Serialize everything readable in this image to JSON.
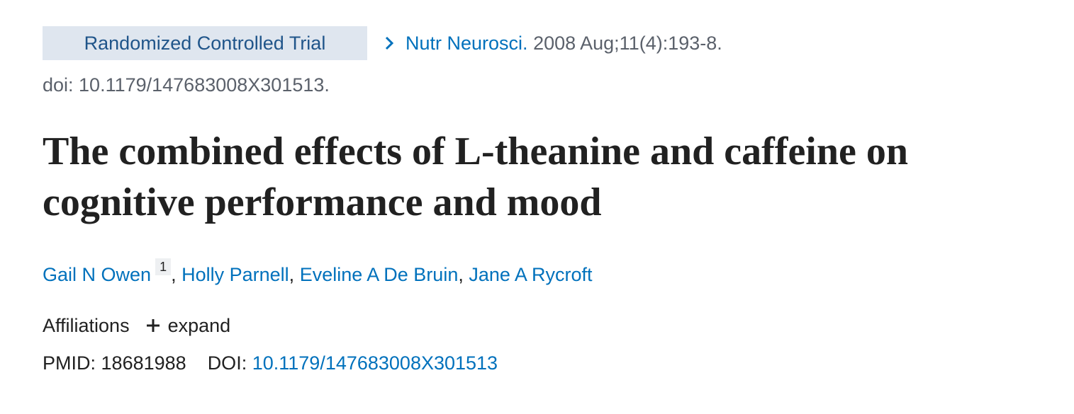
{
  "publication_type": "Randomized Controlled Trial",
  "journal": {
    "name": "Nutr Neurosci.",
    "citation": "2008 Aug;11(4):193-8."
  },
  "doi_line": "doi: 10.1179/147683008X301513.",
  "title": "The combined effects of L-theanine and caffeine on cognitive performance and mood",
  "author_separator": ",",
  "authors": [
    {
      "name": "Gail N Owen",
      "affiliation": "1"
    },
    {
      "name": "Holly Parnell"
    },
    {
      "name": "Eveline A De Bruin"
    },
    {
      "name": "Jane A Rycroft"
    }
  ],
  "affiliations": {
    "label": "Affiliations",
    "toggle": "expand"
  },
  "identifiers": {
    "pmid_label": "PMID:",
    "pmid": "18681988",
    "doi_label": "DOI:",
    "doi": "10.1179/147683008X301513"
  }
}
